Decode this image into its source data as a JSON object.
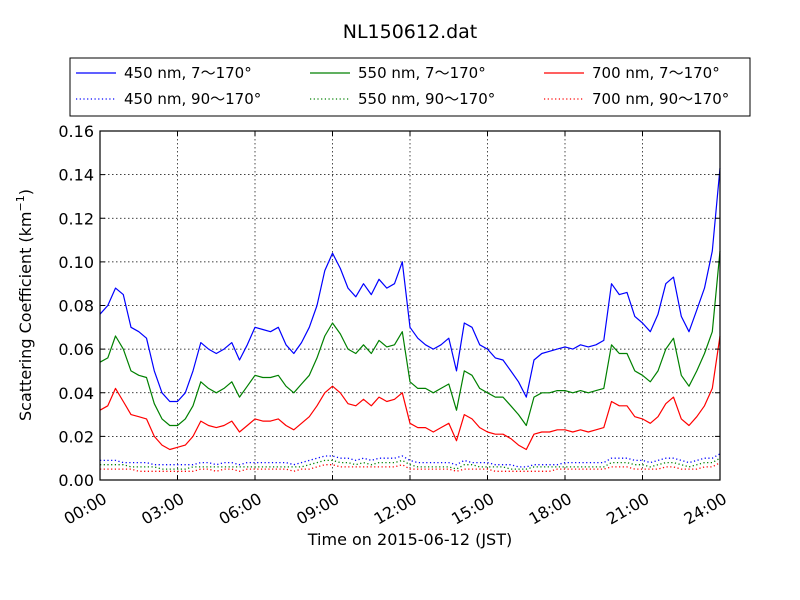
{
  "chart_data": {
    "type": "line",
    "title": "NL150612.dat",
    "xlabel": "Time on 2015-06-12 (JST)",
    "ylabel": "Scattering Coefficient (km",
    "ylabel_sup": "−1",
    "ylabel_close": ")",
    "xlim": [
      0,
      24
    ],
    "ylim": [
      0,
      0.16
    ],
    "x_ticks": [
      0,
      3,
      6,
      9,
      12,
      15,
      18,
      21,
      24
    ],
    "x_tick_labels": [
      "00:00",
      "03:00",
      "06:00",
      "09:00",
      "12:00",
      "15:00",
      "18:00",
      "21:00",
      "24:00"
    ],
    "y_ticks": [
      0,
      0.02,
      0.04,
      0.06,
      0.08,
      0.1,
      0.12,
      0.14,
      0.16
    ],
    "y_tick_labels": [
      "0.00",
      "0.02",
      "0.04",
      "0.06",
      "0.08",
      "0.10",
      "0.12",
      "0.14",
      "0.16"
    ],
    "grid": true,
    "legend_position": "top-outside",
    "x": [
      0,
      0.3,
      0.6,
      0.9,
      1.2,
      1.5,
      1.8,
      2.1,
      2.4,
      2.7,
      3.0,
      3.3,
      3.6,
      3.9,
      4.2,
      4.5,
      4.8,
      5.1,
      5.4,
      5.7,
      6.0,
      6.3,
      6.6,
      6.9,
      7.2,
      7.5,
      7.8,
      8.1,
      8.4,
      8.7,
      9.0,
      9.3,
      9.6,
      9.9,
      10.2,
      10.5,
      10.8,
      11.1,
      11.4,
      11.7,
      12.0,
      12.3,
      12.6,
      12.9,
      13.2,
      13.5,
      13.8,
      14.1,
      14.4,
      14.7,
      15.0,
      15.3,
      15.6,
      15.9,
      16.2,
      16.5,
      16.8,
      17.1,
      17.4,
      17.7,
      18.0,
      18.3,
      18.6,
      18.9,
      19.2,
      19.5,
      19.8,
      20.1,
      20.4,
      20.7,
      21.0,
      21.3,
      21.6,
      21.9,
      22.2,
      22.5,
      22.8,
      23.1,
      23.4,
      23.7,
      24.0
    ],
    "series": [
      {
        "name": "450 nm, 7～170°",
        "color": "#0000ff",
        "style": "solid",
        "values": [
          0.076,
          0.08,
          0.088,
          0.085,
          0.07,
          0.068,
          0.065,
          0.05,
          0.04,
          0.036,
          0.036,
          0.04,
          0.05,
          0.063,
          0.06,
          0.058,
          0.06,
          0.063,
          0.055,
          0.062,
          0.07,
          0.069,
          0.068,
          0.07,
          0.062,
          0.058,
          0.063,
          0.07,
          0.08,
          0.096,
          0.104,
          0.097,
          0.088,
          0.084,
          0.09,
          0.085,
          0.092,
          0.088,
          0.09,
          0.1,
          0.07,
          0.065,
          0.062,
          0.06,
          0.062,
          0.065,
          0.05,
          0.072,
          0.07,
          0.062,
          0.06,
          0.056,
          0.055,
          0.05,
          0.045,
          0.038,
          0.055,
          0.058,
          0.059,
          0.06,
          0.061,
          0.06,
          0.062,
          0.061,
          0.062,
          0.064,
          0.09,
          0.085,
          0.086,
          0.075,
          0.072,
          0.068,
          0.076,
          0.09,
          0.093,
          0.075,
          0.068,
          0.078,
          0.088,
          0.105,
          0.143
        ]
      },
      {
        "name": "550 nm, 7～170°",
        "color": "#008000",
        "style": "solid",
        "values": [
          0.054,
          0.056,
          0.066,
          0.06,
          0.05,
          0.048,
          0.047,
          0.035,
          0.028,
          0.025,
          0.025,
          0.028,
          0.034,
          0.045,
          0.042,
          0.04,
          0.042,
          0.045,
          0.038,
          0.043,
          0.048,
          0.047,
          0.047,
          0.048,
          0.043,
          0.04,
          0.044,
          0.048,
          0.056,
          0.066,
          0.072,
          0.067,
          0.06,
          0.058,
          0.062,
          0.058,
          0.064,
          0.061,
          0.062,
          0.068,
          0.045,
          0.042,
          0.042,
          0.04,
          0.042,
          0.044,
          0.032,
          0.05,
          0.048,
          0.042,
          0.04,
          0.038,
          0.038,
          0.034,
          0.03,
          0.025,
          0.038,
          0.04,
          0.04,
          0.041,
          0.041,
          0.04,
          0.041,
          0.04,
          0.041,
          0.042,
          0.062,
          0.058,
          0.058,
          0.05,
          0.048,
          0.045,
          0.05,
          0.06,
          0.065,
          0.048,
          0.043,
          0.05,
          0.058,
          0.068,
          0.105
        ]
      },
      {
        "name": "700 nm, 7～170°",
        "color": "#ff0000",
        "style": "solid",
        "values": [
          0.032,
          0.034,
          0.042,
          0.036,
          0.03,
          0.029,
          0.028,
          0.02,
          0.016,
          0.014,
          0.015,
          0.016,
          0.02,
          0.027,
          0.025,
          0.024,
          0.025,
          0.027,
          0.022,
          0.025,
          0.028,
          0.027,
          0.027,
          0.028,
          0.025,
          0.023,
          0.026,
          0.029,
          0.034,
          0.04,
          0.043,
          0.04,
          0.035,
          0.034,
          0.037,
          0.034,
          0.038,
          0.036,
          0.037,
          0.04,
          0.026,
          0.024,
          0.024,
          0.022,
          0.024,
          0.026,
          0.018,
          0.03,
          0.028,
          0.024,
          0.022,
          0.021,
          0.021,
          0.019,
          0.016,
          0.014,
          0.021,
          0.022,
          0.022,
          0.023,
          0.023,
          0.022,
          0.023,
          0.022,
          0.023,
          0.024,
          0.036,
          0.034,
          0.034,
          0.029,
          0.028,
          0.026,
          0.029,
          0.035,
          0.038,
          0.028,
          0.025,
          0.029,
          0.034,
          0.042,
          0.066
        ]
      },
      {
        "name": "450 nm, 90～170°",
        "color": "#0000ff",
        "style": "dotted",
        "values": [
          0.009,
          0.009,
          0.009,
          0.008,
          0.008,
          0.008,
          0.008,
          0.007,
          0.007,
          0.007,
          0.007,
          0.007,
          0.007,
          0.008,
          0.008,
          0.007,
          0.008,
          0.008,
          0.007,
          0.008,
          0.008,
          0.008,
          0.008,
          0.008,
          0.008,
          0.007,
          0.008,
          0.009,
          0.01,
          0.011,
          0.011,
          0.01,
          0.01,
          0.009,
          0.01,
          0.009,
          0.01,
          0.01,
          0.01,
          0.011,
          0.009,
          0.008,
          0.008,
          0.008,
          0.008,
          0.008,
          0.007,
          0.009,
          0.008,
          0.008,
          0.008,
          0.007,
          0.007,
          0.007,
          0.006,
          0.006,
          0.007,
          0.007,
          0.007,
          0.007,
          0.008,
          0.008,
          0.008,
          0.008,
          0.008,
          0.008,
          0.01,
          0.01,
          0.01,
          0.009,
          0.009,
          0.008,
          0.009,
          0.01,
          0.01,
          0.009,
          0.008,
          0.009,
          0.01,
          0.01,
          0.012
        ]
      },
      {
        "name": "550 nm, 90～170°",
        "color": "#008000",
        "style": "dotted",
        "values": [
          0.007,
          0.007,
          0.007,
          0.007,
          0.006,
          0.006,
          0.006,
          0.006,
          0.005,
          0.005,
          0.005,
          0.005,
          0.006,
          0.006,
          0.006,
          0.006,
          0.006,
          0.006,
          0.006,
          0.006,
          0.006,
          0.006,
          0.006,
          0.006,
          0.006,
          0.006,
          0.006,
          0.007,
          0.008,
          0.009,
          0.009,
          0.008,
          0.008,
          0.007,
          0.008,
          0.007,
          0.008,
          0.008,
          0.008,
          0.009,
          0.007,
          0.006,
          0.006,
          0.006,
          0.006,
          0.006,
          0.005,
          0.007,
          0.007,
          0.006,
          0.006,
          0.006,
          0.006,
          0.005,
          0.005,
          0.005,
          0.006,
          0.006,
          0.006,
          0.006,
          0.006,
          0.006,
          0.006,
          0.006,
          0.006,
          0.006,
          0.008,
          0.008,
          0.008,
          0.007,
          0.007,
          0.006,
          0.007,
          0.008,
          0.008,
          0.007,
          0.006,
          0.007,
          0.008,
          0.008,
          0.01
        ]
      },
      {
        "name": "700 nm, 90～170°",
        "color": "#ff0000",
        "style": "dotted",
        "values": [
          0.005,
          0.005,
          0.005,
          0.005,
          0.005,
          0.004,
          0.004,
          0.004,
          0.004,
          0.004,
          0.004,
          0.004,
          0.004,
          0.005,
          0.005,
          0.004,
          0.005,
          0.005,
          0.004,
          0.005,
          0.005,
          0.005,
          0.005,
          0.005,
          0.005,
          0.004,
          0.005,
          0.005,
          0.006,
          0.007,
          0.007,
          0.006,
          0.006,
          0.006,
          0.006,
          0.006,
          0.006,
          0.006,
          0.006,
          0.007,
          0.005,
          0.005,
          0.005,
          0.005,
          0.005,
          0.005,
          0.004,
          0.005,
          0.005,
          0.005,
          0.005,
          0.004,
          0.004,
          0.004,
          0.004,
          0.004,
          0.004,
          0.004,
          0.004,
          0.005,
          0.005,
          0.005,
          0.005,
          0.005,
          0.005,
          0.005,
          0.006,
          0.006,
          0.006,
          0.005,
          0.005,
          0.005,
          0.005,
          0.006,
          0.006,
          0.005,
          0.005,
          0.005,
          0.006,
          0.006,
          0.008
        ]
      }
    ],
    "legend": [
      {
        "label": "450 nm, 7～170°",
        "series_index": 0
      },
      {
        "label": "550 nm, 7～170°",
        "series_index": 1
      },
      {
        "label": "700 nm, 7～170°",
        "series_index": 2
      },
      {
        "label": "450 nm, 90～170°",
        "series_index": 3
      },
      {
        "label": "550 nm, 90～170°",
        "series_index": 4
      },
      {
        "label": "700 nm, 90～170°",
        "series_index": 5
      }
    ]
  }
}
